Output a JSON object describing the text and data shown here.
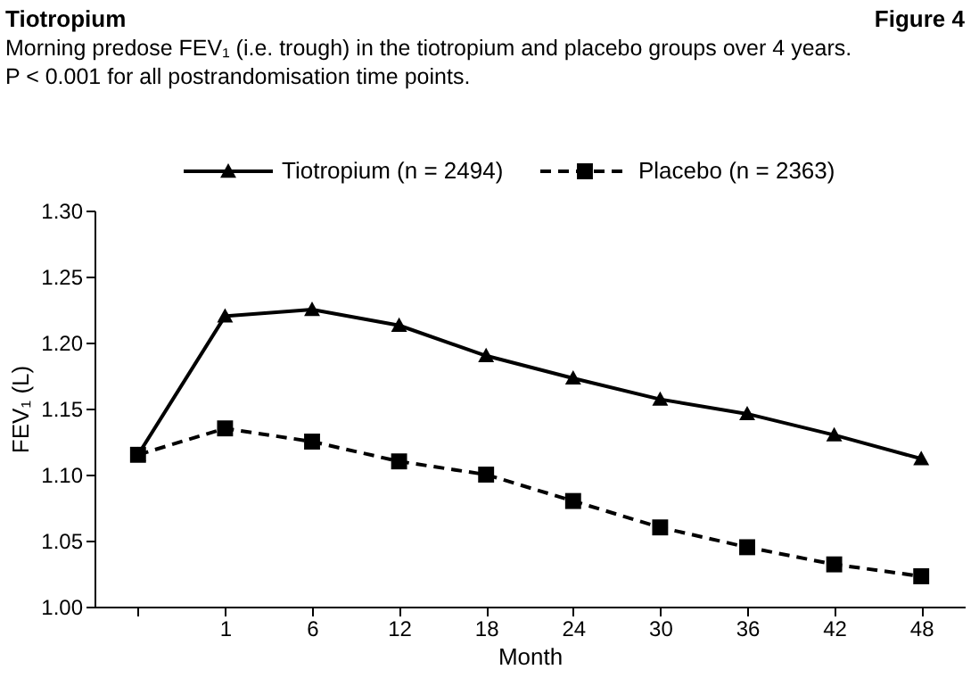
{
  "chart_data": {
    "type": "line",
    "title": "Tiotropium",
    "subtitle": [
      "Morning predose FEV₁ (i.e. trough) in the tiotropium and placebo groups over 4 years.",
      "P < 0.001 for all postrandomisation time points."
    ],
    "annotations": [
      "Figure 4"
    ],
    "xlabel": "Month",
    "ylabel": "FEV₁ (L)",
    "categories": [
      null,
      "1",
      "6",
      "12",
      "18",
      "24",
      "30",
      "36",
      "42",
      "48"
    ],
    "series": [
      {
        "name": "Tiotropium (n = 2494)",
        "color": "#000000",
        "marker": "triangle",
        "line_style": "solid",
        "values": [
          1.115,
          1.22,
          1.225,
          1.213,
          1.19,
          1.173,
          1.157,
          1.146,
          1.13,
          1.112
        ]
      },
      {
        "name": "Placebo (n = 2363)",
        "color": "#000000",
        "marker": "square",
        "line_style": "dashed",
        "values": [
          1.115,
          1.135,
          1.125,
          1.11,
          1.1,
          1.08,
          1.06,
          1.045,
          1.032,
          1.023
        ]
      }
    ],
    "ylim": [
      1.0,
      1.3
    ],
    "yticks": [
      {
        "value": 1.0,
        "label": "1.00"
      },
      1.05,
      {
        "value": 1.1,
        "label": "1.10"
      },
      1.15,
      {
        "value": 1.2,
        "label": "1.20"
      },
      1.25,
      {
        "value": 1.3,
        "label": "1.30"
      }
    ],
    "grid": false,
    "legend": "top"
  }
}
